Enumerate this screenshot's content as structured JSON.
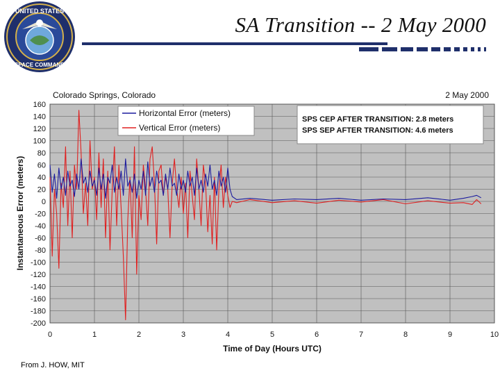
{
  "slide": {
    "title": "SA Transition -- 2 May 2000",
    "credit": "From J. HOW, MIT",
    "logo": {
      "label_top": "UNITED STATES",
      "label_bottom": "SPACE COMMAND"
    }
  },
  "chart_data": {
    "type": "line",
    "location": "Colorado Springs, Colorado",
    "date": "2 May 2000",
    "xlabel": "Time of Day (Hours UTC)",
    "ylabel": "Instantaneous Error (meters)",
    "xlim": [
      0,
      10
    ],
    "ylim": [
      -200,
      160
    ],
    "xticks": [
      0,
      1,
      2,
      3,
      4,
      5,
      6,
      7,
      8,
      9,
      10
    ],
    "yticks": [
      160,
      140,
      120,
      100,
      80,
      60,
      40,
      20,
      0,
      -20,
      -40,
      -60,
      -80,
      -100,
      -120,
      -140,
      -160,
      -180,
      -200
    ],
    "grid": true,
    "legend_position": "top-left",
    "annotation": {
      "line1": "SPS CEP AFTER TRANSITION:  2.8 meters",
      "line2": "SPS SEP AFTER TRANSITION:  4.6 meters"
    },
    "series": [
      {
        "name": "Horizontal Error (meters)",
        "color": "#1a1a9e",
        "x": [
          0.0,
          0.05,
          0.1,
          0.15,
          0.2,
          0.25,
          0.3,
          0.35,
          0.4,
          0.45,
          0.5,
          0.55,
          0.6,
          0.65,
          0.7,
          0.75,
          0.8,
          0.85,
          0.9,
          0.95,
          1.0,
          1.05,
          1.1,
          1.15,
          1.2,
          1.25,
          1.3,
          1.35,
          1.4,
          1.45,
          1.5,
          1.55,
          1.6,
          1.65,
          1.7,
          1.75,
          1.8,
          1.85,
          1.9,
          1.95,
          2.0,
          2.05,
          2.1,
          2.15,
          2.2,
          2.25,
          2.3,
          2.35,
          2.4,
          2.45,
          2.5,
          2.55,
          2.6,
          2.65,
          2.7,
          2.75,
          2.8,
          2.85,
          2.9,
          2.95,
          3.0,
          3.05,
          3.1,
          3.15,
          3.2,
          3.25,
          3.3,
          3.35,
          3.4,
          3.45,
          3.5,
          3.55,
          3.6,
          3.65,
          3.7,
          3.75,
          3.8,
          3.85,
          3.9,
          3.95,
          4.0,
          4.05,
          4.1,
          4.2,
          4.5,
          5.0,
          5.5,
          6.0,
          6.5,
          7.0,
          7.5,
          8.0,
          8.5,
          9.0,
          9.3,
          9.5,
          9.6,
          9.7
        ],
        "y": [
          60,
          15,
          45,
          5,
          55,
          20,
          40,
          10,
          50,
          25,
          35,
          8,
          45,
          20,
          70,
          30,
          40,
          15,
          50,
          25,
          35,
          10,
          55,
          20,
          45,
          5,
          40,
          30,
          60,
          15,
          40,
          20,
          50,
          10,
          70,
          25,
          35,
          15,
          45,
          5,
          35,
          20,
          50,
          10,
          65,
          25,
          40,
          15,
          50,
          30,
          35,
          10,
          45,
          20,
          55,
          25,
          30,
          10,
          45,
          20,
          35,
          15,
          50,
          25,
          40,
          10,
          55,
          20,
          35,
          15,
          45,
          25,
          60,
          20,
          35,
          10,
          50,
          25,
          40,
          15,
          55,
          20,
          8,
          3,
          5,
          2,
          4,
          3,
          5,
          2,
          4,
          3,
          6,
          2,
          5,
          8,
          10,
          6
        ]
      },
      {
        "name": "Vertical Error (meters)",
        "color": "#e02020",
        "x": [
          0.0,
          0.05,
          0.1,
          0.15,
          0.2,
          0.25,
          0.3,
          0.35,
          0.4,
          0.45,
          0.5,
          0.55,
          0.6,
          0.65,
          0.7,
          0.75,
          0.8,
          0.85,
          0.9,
          0.95,
          1.0,
          1.05,
          1.1,
          1.15,
          1.2,
          1.25,
          1.3,
          1.35,
          1.4,
          1.45,
          1.5,
          1.55,
          1.6,
          1.65,
          1.7,
          1.75,
          1.8,
          1.85,
          1.9,
          1.95,
          2.0,
          2.05,
          2.1,
          2.15,
          2.2,
          2.25,
          2.3,
          2.35,
          2.4,
          2.45,
          2.5,
          2.55,
          2.6,
          2.65,
          2.7,
          2.75,
          2.8,
          2.85,
          2.9,
          2.95,
          3.0,
          3.05,
          3.1,
          3.15,
          3.2,
          3.25,
          3.3,
          3.35,
          3.4,
          3.45,
          3.5,
          3.55,
          3.6,
          3.65,
          3.7,
          3.75,
          3.8,
          3.85,
          3.9,
          3.95,
          4.0,
          4.05,
          4.1,
          4.2,
          4.5,
          5.0,
          5.5,
          6.0,
          6.5,
          7.0,
          7.5,
          8.0,
          8.5,
          9.0,
          9.3,
          9.5,
          9.6,
          9.7
        ],
        "y": [
          40,
          -90,
          20,
          -20,
          -110,
          30,
          -10,
          90,
          -40,
          50,
          -60,
          60,
          20,
          150,
          80,
          -20,
          30,
          -40,
          100,
          20,
          40,
          -30,
          80,
          -10,
          70,
          -60,
          50,
          -80,
          20,
          90,
          -40,
          60,
          -10,
          -90,
          -195,
          -30,
          40,
          -60,
          90,
          -120,
          10,
          -30,
          60,
          20,
          -40,
          70,
          90,
          30,
          -70,
          50,
          60,
          10,
          40,
          20,
          -60,
          30,
          70,
          20,
          -10,
          40,
          -20,
          30,
          -60,
          50,
          10,
          -30,
          70,
          20,
          -40,
          60,
          30,
          -50,
          10,
          -70,
          40,
          -80,
          20,
          60,
          -10,
          40,
          10,
          -10,
          0,
          -2,
          3,
          -2,
          1,
          -3,
          2,
          -1,
          3,
          -4,
          1,
          -3,
          -2,
          -5,
          3,
          -4
        ]
      }
    ]
  }
}
